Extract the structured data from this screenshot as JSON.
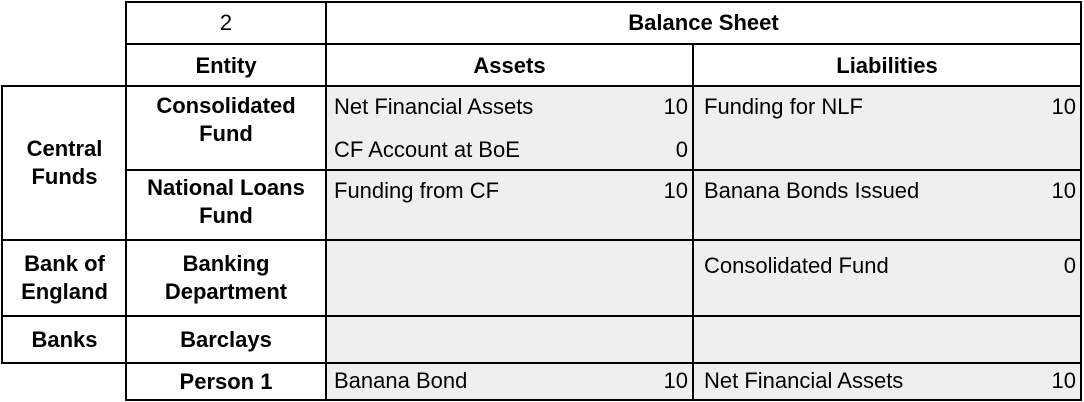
{
  "header": {
    "number": "2",
    "title": "Balance Sheet",
    "entity_label": "Entity",
    "assets_label": "Assets",
    "liabilities_label": "Liabilities"
  },
  "groups": {
    "central_funds": "Central\nFunds",
    "bank_of_england": "Bank of\nEngland",
    "banks": "Banks"
  },
  "entities": {
    "consolidated_fund": "Consolidated\nFund",
    "national_loans_fund": "National Loans\nFund",
    "banking_department": "Banking\nDepartment",
    "barclays": "Barclays",
    "person_1": "Person 1"
  },
  "consolidated_fund": {
    "assets": [
      {
        "label": "Net Financial Assets",
        "value": "10"
      },
      {
        "label": "CF Account at BoE",
        "value": "0"
      }
    ],
    "liabilities": [
      {
        "label": "Funding for NLF",
        "value": "10"
      }
    ]
  },
  "national_loans_fund": {
    "assets": [
      {
        "label": "Funding from CF",
        "value": "10"
      }
    ],
    "liabilities": [
      {
        "label": "Banana Bonds Issued",
        "value": "10"
      }
    ]
  },
  "banking_department": {
    "liabilities": [
      {
        "label": "Consolidated Fund",
        "value": "0"
      }
    ]
  },
  "person_1": {
    "assets": [
      {
        "label": "Banana Bond",
        "value": "10"
      }
    ],
    "liabilities": [
      {
        "label": "Net Financial Assets",
        "value": "10"
      }
    ]
  }
}
